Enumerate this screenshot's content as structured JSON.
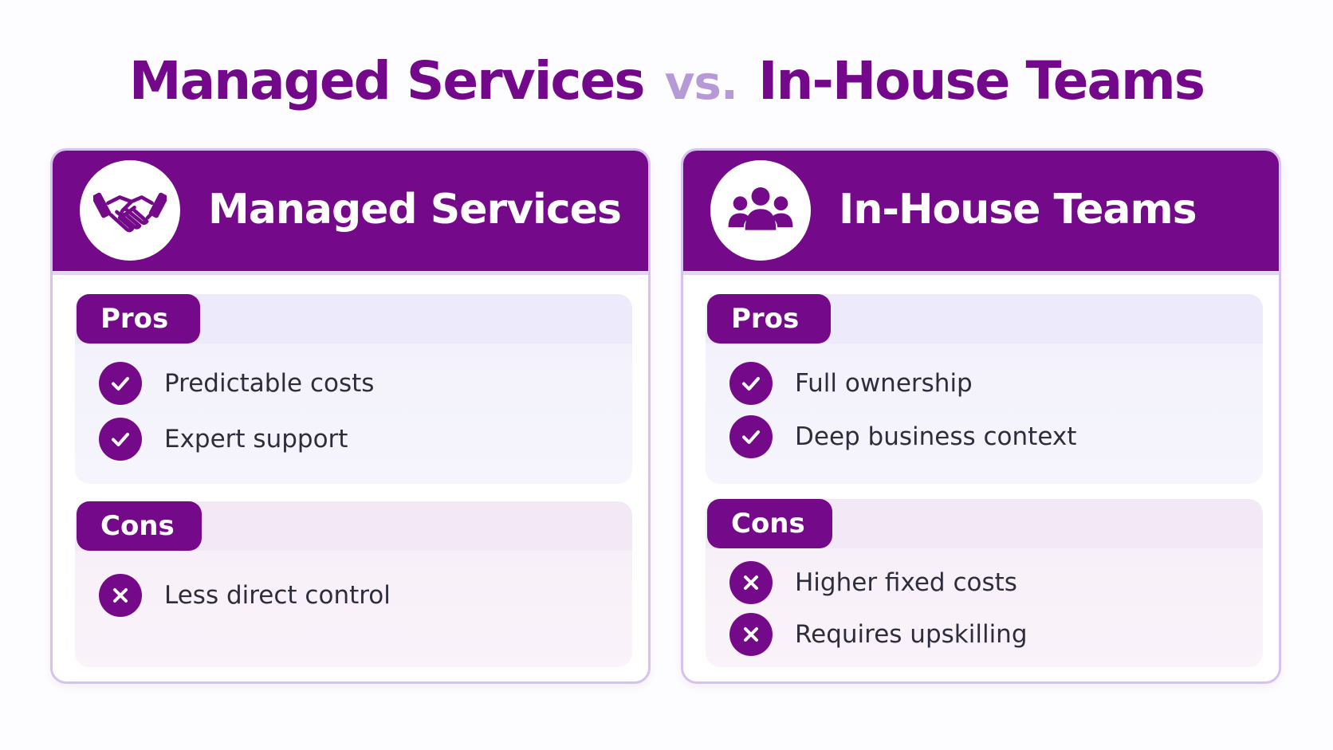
{
  "title": {
    "left": "Managed Services",
    "vs": "vs.",
    "right": "In-House Teams"
  },
  "colors": {
    "primary": "#74098a",
    "vs": "#b69ad8",
    "pros_bg": "#eceafb",
    "cons_bg": "#f3e9f6",
    "card_border": "#d4c3ec"
  },
  "cards": [
    {
      "title": "Managed Services",
      "icon": "handshake-icon",
      "pros": {
        "label": "Pros",
        "items": [
          "Predictable costs",
          "Expert support"
        ]
      },
      "cons": {
        "label": "Cons",
        "items": [
          "Less direct control"
        ]
      }
    },
    {
      "title": "In-House Teams",
      "icon": "team-icon",
      "pros": {
        "label": "Pros",
        "items": [
          "Full ownership",
          "Deep business context"
        ]
      },
      "cons": {
        "label": "Cons",
        "items": [
          "Higher fixed costs",
          "Requires upskilling"
        ]
      }
    }
  ]
}
